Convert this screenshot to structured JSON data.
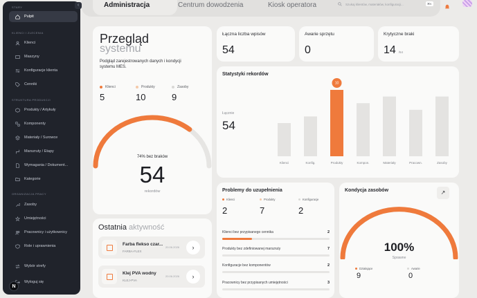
{
  "sidebar": {
    "header": "STARY",
    "collapse_icon": "chevron-left-icon",
    "active_item": "Pulpit",
    "sections": [
      {
        "title": "KLIENCI I ZLECENIA",
        "items": [
          "Klienci",
          "Maszyny",
          "Konfiguracje klienta",
          "Cenniki"
        ]
      },
      {
        "title": "STRUKTURA PRODUKCJI",
        "items": [
          "Produkty / Artykuły",
          "Komponenty",
          "Materiały / Surowce",
          "Marszruty / Etapy",
          "Wymagania / Dokument...",
          "Kategorie"
        ]
      },
      {
        "title": "ORGANIZACJA PRACY",
        "items": [
          "Zasoby",
          "Umiejętności",
          "Pracownicy i użytkownicy",
          "Role i uprawnienia"
        ]
      }
    ],
    "footer_items": [
      "Wybór strefy",
      "Wyloguj się"
    ],
    "logo_letter": "N"
  },
  "tabs": [
    "Administracja",
    "Centrum dowodzenia",
    "Kiosk operatora"
  ],
  "search": {
    "placeholder": "Szukaj klientów, materiałów, konfiguracji...",
    "shortcut": "⌘K"
  },
  "overview": {
    "title": "Przegląd",
    "subtitle": "systemu",
    "description": "Podgląd zarejestrowanych danych i kondycji systemu MES.",
    "legend": [
      {
        "label": "Klienci",
        "value": "5",
        "color": "#ef7a3c"
      },
      {
        "label": "Produkty",
        "value": "10",
        "color": "#f5c9a8"
      },
      {
        "label": "Zasoby",
        "value": "9",
        "color": "#d9d8d6"
      }
    ],
    "gauge_caption": "74% bez braków",
    "gauge_value": "54",
    "gauge_unit": "rekordów",
    "gauge_percent": 74
  },
  "stats": [
    {
      "label": "Łączna liczba wpisów",
      "value": "54",
      "unit": ""
    },
    {
      "label": "Awarie sprzętu",
      "value": "0",
      "unit": ""
    },
    {
      "label": "Krytyczne braki",
      "value": "14",
      "unit": "/54"
    }
  ],
  "records_chart": {
    "title": "Statystyki rekordów",
    "total_label": "Łącznie",
    "total_value": "54",
    "highlight_badge": "10"
  },
  "chart_data": {
    "type": "bar",
    "title": "Statystyki rekordów",
    "categories": [
      "Klienci",
      "Konfig.",
      "Produkty",
      "Kompon.",
      "Materiały",
      "Pracown.",
      "Zasoby"
    ],
    "values": [
      5,
      6,
      10,
      8,
      9,
      7,
      9
    ],
    "highlight": "Produkty",
    "colors": {
      "bar": "#e4e3e1",
      "highlight": "#ef7a3c"
    }
  },
  "problems": {
    "title": "Problemy do uzupełnienia",
    "legend": [
      {
        "label": "Klienci",
        "value": "2",
        "color": "#ef7a3c"
      },
      {
        "label": "Produkty",
        "value": "7",
        "color": "#f5c9a8"
      },
      {
        "label": "Konfiguracje",
        "value": "2",
        "color": "#d9d8d6"
      }
    ],
    "rows": [
      {
        "name": "Klienci bez przypisanego cennika",
        "count": "2",
        "fraction": 0.28
      },
      {
        "name": "Produkty bez zdefiniowanej marszruty",
        "count": "7",
        "fraction": 0.0
      },
      {
        "name": "Konfiguracje bez komponentów",
        "count": "2",
        "fraction": 0.0
      },
      {
        "name": "Pracownicy bez przypisanych umiejętności",
        "count": "3",
        "fraction": 0.0
      }
    ]
  },
  "activity": {
    "title": "Ostatnia",
    "title_accent": "aktywność",
    "items": [
      {
        "name": "Farba flekso czar...",
        "code": "FARBA-FLEX",
        "date": "20.06.2026"
      },
      {
        "name": "Klej PVA wodny",
        "code": "KLEJ-PVA",
        "date": "20.06.2026"
      }
    ]
  },
  "condition": {
    "title": "Kondycja zasobów",
    "percent": "100%",
    "status": "Sprawne",
    "legend": [
      {
        "label": "Działające",
        "value": "9",
        "color": "#ef7a3c"
      },
      {
        "label": "Awarie",
        "value": "0",
        "color": "#d9d8d6"
      }
    ],
    "gauge_percent": 100
  },
  "colors": {
    "accent": "#ef7a3c",
    "sidebar": "#20232b"
  }
}
